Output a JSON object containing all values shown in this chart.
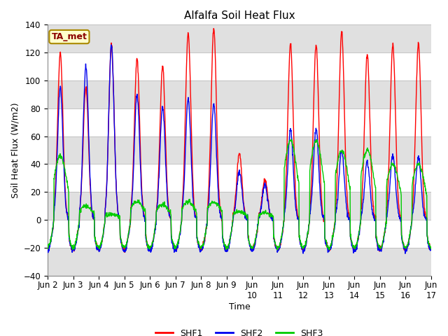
{
  "title": "Alfalfa Soil Heat Flux",
  "ylabel": "Soil Heat Flux (W/m2)",
  "xlabel": "Time",
  "ylim": [
    -40,
    140
  ],
  "yticks": [
    -40,
    -20,
    0,
    20,
    40,
    60,
    80,
    100,
    120,
    140
  ],
  "annotation_text": "TA_met",
  "annotation_facecolor": "#FFFFCC",
  "annotation_edgecolor": "#AA8800",
  "shf1_color": "#FF0000",
  "shf2_color": "#0000EE",
  "shf3_color": "#00CC00",
  "background_color": "#FFFFFF",
  "grid_band_color": "#E0E0E0",
  "legend_labels": [
    "SHF1",
    "SHF2",
    "SHF3"
  ],
  "n_days": 15,
  "samples_per_day": 96
}
